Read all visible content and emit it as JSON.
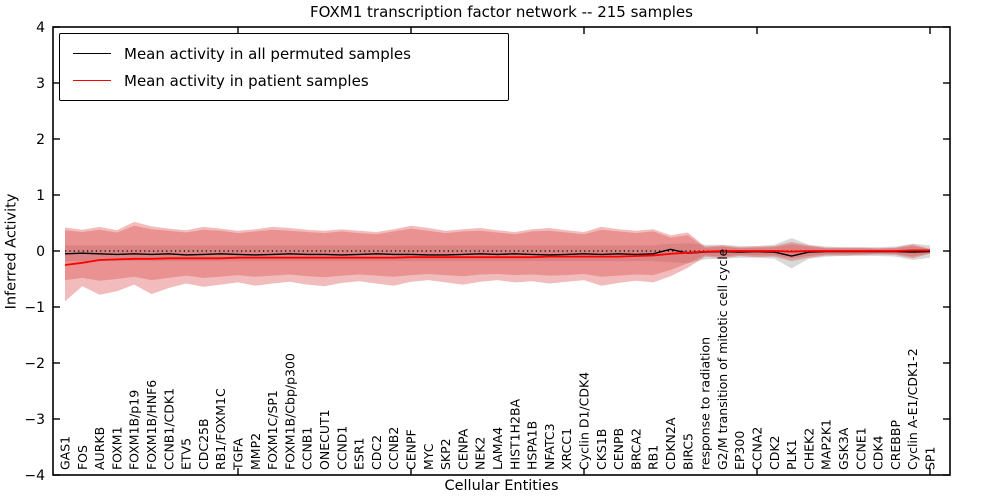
{
  "chart_data": {
    "type": "line",
    "title": "FOXM1 transcription factor network -- 215 samples",
    "xlabel": "Cellular Entities",
    "ylabel": "Inferred Activity",
    "ylim": [
      -4,
      4
    ],
    "y_tick_labels": [
      "4",
      "3",
      "2",
      "1",
      "0",
      "−1",
      "−2",
      "−3",
      "−4"
    ],
    "y_tick_values": [
      4,
      3,
      2,
      1,
      0,
      -1,
      -2,
      -3,
      -4
    ],
    "x_major_tick_indices": [
      10,
      20,
      30,
      40,
      50
    ],
    "grid": false,
    "zero_line": "dotted",
    "legend_position": "upper left",
    "legend": [
      {
        "label": "Mean activity in all permuted samples",
        "color": "#000000"
      },
      {
        "label": "Mean activity in patient samples",
        "color": "#ff0000"
      }
    ],
    "categories": [
      "GAS1",
      "FOS",
      "AURKB",
      "FOXM1",
      "FOXM1B/p19",
      "FOXM1B/HNF6",
      "CCNB1/CDK1",
      "ETV5",
      "CDC25B",
      "RB1/FOXM1C",
      "TGFA",
      "MMP2",
      "FOXM1C/SP1",
      "FOXM1B/Cbp/p300",
      "CCNB1",
      "ONECUT1",
      "CCND1",
      "ESR1",
      "CDC2",
      "CCNB2",
      "CENPF",
      "MYC",
      "SKP2",
      "CENPA",
      "NEK2",
      "LAMA4",
      "HIST1H2BA",
      "HSPA1B",
      "NFATC3",
      "XRCC1",
      "Cyclin D1/CDK4",
      "CKS1B",
      "CENPB",
      "BRCA2",
      "RB1",
      "CDKN2A",
      "BIRC5",
      "response to radiation",
      "G2/M transition of mitotic cell cycle",
      "EP300",
      "CCNA2",
      "CDK2",
      "PLK1",
      "CHEK2",
      "MAP2K1",
      "GSK3A",
      "CCNE1",
      "CDK4",
      "CREBBP",
      "Cyclin A-E1/CDK1-2",
      "SP1"
    ],
    "series": [
      {
        "name": "permuted_mean",
        "color": "#000000",
        "values": [
          -0.05,
          -0.04,
          -0.05,
          -0.06,
          -0.05,
          -0.06,
          -0.05,
          -0.07,
          -0.06,
          -0.05,
          -0.06,
          -0.07,
          -0.06,
          -0.05,
          -0.06,
          -0.06,
          -0.07,
          -0.06,
          -0.05,
          -0.06,
          -0.06,
          -0.07,
          -0.07,
          -0.06,
          -0.05,
          -0.06,
          -0.05,
          -0.06,
          -0.07,
          -0.06,
          -0.05,
          -0.06,
          -0.05,
          -0.06,
          -0.05,
          0.03,
          -0.04,
          -0.02,
          -0.01,
          -0.02,
          -0.01,
          -0.02,
          -0.09,
          -0.02,
          -0.01,
          -0.01,
          -0.01,
          -0.01,
          -0.01,
          -0.02,
          -0.01
        ]
      },
      {
        "name": "patient_mean",
        "color": "#ff0000",
        "values": [
          -0.25,
          -0.21,
          -0.16,
          -0.15,
          -0.14,
          -0.14,
          -0.13,
          -0.13,
          -0.13,
          -0.13,
          -0.12,
          -0.12,
          -0.12,
          -0.12,
          -0.12,
          -0.12,
          -0.12,
          -0.12,
          -0.12,
          -0.12,
          -0.11,
          -0.11,
          -0.11,
          -0.11,
          -0.11,
          -0.11,
          -0.11,
          -0.11,
          -0.1,
          -0.1,
          -0.1,
          -0.1,
          -0.1,
          -0.09,
          -0.08,
          -0.05,
          -0.03,
          -0.01,
          0.0,
          0.0,
          0.0,
          0.0,
          -0.01,
          0.0,
          0.0,
          0.0,
          0.0,
          0.0,
          0.0,
          0.01,
          0.01
        ]
      }
    ],
    "bands": [
      {
        "name": "patient_outer_band",
        "color": "#dd5050",
        "opacity": 0.38,
        "hi": [
          0.42,
          0.38,
          0.43,
          0.37,
          0.52,
          0.44,
          0.4,
          0.37,
          0.43,
          0.4,
          0.36,
          0.39,
          0.43,
          0.41,
          0.38,
          0.36,
          0.39,
          0.36,
          0.34,
          0.39,
          0.45,
          0.41,
          0.36,
          0.39,
          0.41,
          0.37,
          0.34,
          0.39,
          0.41,
          0.37,
          0.34,
          0.43,
          0.39,
          0.36,
          0.39,
          0.28,
          0.33,
          0.08,
          0.1,
          0.07,
          0.08,
          0.09,
          0.16,
          0.1,
          0.06,
          0.06,
          0.06,
          0.05,
          0.06,
          0.12,
          0.04
        ],
        "lo": [
          -0.9,
          -0.63,
          -0.78,
          -0.72,
          -0.6,
          -0.77,
          -0.66,
          -0.58,
          -0.64,
          -0.6,
          -0.56,
          -0.62,
          -0.58,
          -0.55,
          -0.6,
          -0.63,
          -0.57,
          -0.54,
          -0.58,
          -0.62,
          -0.55,
          -0.52,
          -0.56,
          -0.6,
          -0.55,
          -0.52,
          -0.56,
          -0.54,
          -0.58,
          -0.55,
          -0.52,
          -0.62,
          -0.57,
          -0.53,
          -0.56,
          -0.45,
          -0.3,
          -0.1,
          -0.13,
          -0.09,
          -0.11,
          -0.1,
          -0.18,
          -0.12,
          -0.08,
          -0.08,
          -0.07,
          -0.06,
          -0.07,
          -0.13,
          -0.05
        ]
      },
      {
        "name": "patient_inner_band",
        "color": "#dd5050",
        "opacity": 0.38,
        "hi": [
          0.37,
          0.34,
          0.38,
          0.33,
          0.45,
          0.39,
          0.36,
          0.33,
          0.38,
          0.36,
          0.32,
          0.35,
          0.38,
          0.36,
          0.34,
          0.32,
          0.35,
          0.32,
          0.3,
          0.35,
          0.4,
          0.36,
          0.32,
          0.35,
          0.36,
          0.33,
          0.3,
          0.35,
          0.36,
          0.33,
          0.3,
          0.38,
          0.35,
          0.32,
          0.35,
          0.24,
          0.28,
          0.06,
          0.08,
          0.05,
          0.06,
          0.07,
          0.12,
          0.08,
          0.05,
          0.05,
          0.05,
          0.04,
          0.05,
          0.09,
          0.03
        ],
        "lo": [
          -0.52,
          -0.48,
          -0.53,
          -0.5,
          -0.46,
          -0.52,
          -0.48,
          -0.44,
          -0.48,
          -0.46,
          -0.43,
          -0.46,
          -0.44,
          -0.42,
          -0.45,
          -0.47,
          -0.44,
          -0.42,
          -0.44,
          -0.46,
          -0.43,
          -0.41,
          -0.43,
          -0.45,
          -0.42,
          -0.41,
          -0.43,
          -0.42,
          -0.44,
          -0.43,
          -0.41,
          -0.46,
          -0.44,
          -0.42,
          -0.43,
          -0.34,
          -0.22,
          -0.08,
          -0.1,
          -0.07,
          -0.08,
          -0.08,
          -0.13,
          -0.09,
          -0.06,
          -0.06,
          -0.06,
          -0.05,
          -0.05,
          -0.1,
          -0.04
        ]
      },
      {
        "name": "permuted_band",
        "color": "#d9d9d9",
        "opacity": 1,
        "hi": [
          0.1,
          0.1,
          0.1,
          0.1,
          0.1,
          0.1,
          0.1,
          0.1,
          0.1,
          0.1,
          0.1,
          0.1,
          0.1,
          0.1,
          0.1,
          0.1,
          0.1,
          0.1,
          0.1,
          0.1,
          0.1,
          0.1,
          0.1,
          0.1,
          0.1,
          0.1,
          0.1,
          0.1,
          0.1,
          0.1,
          0.1,
          0.1,
          0.1,
          0.1,
          0.1,
          0.13,
          0.14,
          0.11,
          0.11,
          0.09,
          0.09,
          0.11,
          0.23,
          0.11,
          0.08,
          0.07,
          0.07,
          0.07,
          0.08,
          0.13,
          0.1
        ],
        "lo": [
          -0.18,
          -0.18,
          -0.18,
          -0.18,
          -0.18,
          -0.18,
          -0.18,
          -0.18,
          -0.18,
          -0.18,
          -0.18,
          -0.18,
          -0.18,
          -0.18,
          -0.18,
          -0.18,
          -0.18,
          -0.18,
          -0.18,
          -0.18,
          -0.18,
          -0.18,
          -0.18,
          -0.18,
          -0.18,
          -0.18,
          -0.18,
          -0.18,
          -0.18,
          -0.18,
          -0.18,
          -0.18,
          -0.18,
          -0.18,
          -0.18,
          -0.2,
          -0.22,
          -0.15,
          -0.14,
          -0.12,
          -0.12,
          -0.14,
          -0.31,
          -0.14,
          -0.1,
          -0.09,
          -0.09,
          -0.09,
          -0.1,
          -0.16,
          -0.12
        ]
      }
    ]
  },
  "colors": {
    "red_line": "#ff0000",
    "black_line": "#000000",
    "patient_band": "#dd5050",
    "permuted_band": "#d9d9d9",
    "frame": "#000000"
  }
}
